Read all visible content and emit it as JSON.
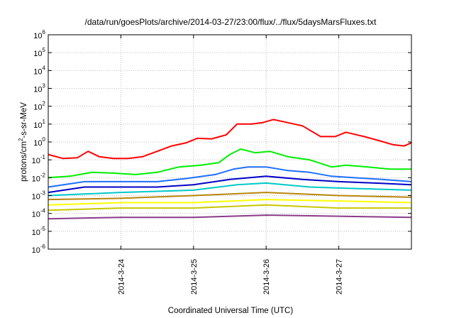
{
  "chart_data": {
    "type": "line",
    "title": "/data/run/goesPlots/archive/2014-03-27/23:00/flux/../flux/5daysMarsFluxes.txt",
    "xlabel": "Coordinated Universal Time (UTC)",
    "ylabel": {
      "prefix": "protons/cm",
      "sup": "2",
      "suffix": "-s-sr-MeV"
    },
    "x_tick_labels": [
      "2014-3-24",
      "2014-3-25",
      "2014-3-26",
      "2014-3-27"
    ],
    "x_range_days": [
      -1.0,
      4.0
    ],
    "y_scale": "log",
    "y_tick_labels": [
      {
        "base": "10",
        "exp": "-6"
      },
      {
        "base": "10",
        "exp": "-5"
      },
      {
        "base": "10",
        "exp": "-4"
      },
      {
        "base": "10",
        "exp": "-3"
      },
      {
        "base": "10",
        "exp": "-2"
      },
      {
        "base": "10",
        "exp": "-1"
      },
      {
        "base": "10",
        "exp": "0"
      },
      {
        "base": "10",
        "exp": "1"
      },
      {
        "base": "10",
        "exp": "2"
      },
      {
        "base": "10",
        "exp": "3"
      },
      {
        "base": "10",
        "exp": "4"
      },
      {
        "base": "10",
        "exp": "5"
      },
      {
        "base": "10",
        "exp": "6"
      }
    ],
    "ylim_exp": [
      -6,
      6
    ],
    "grid": true,
    "series": [
      {
        "color": "#ff0000",
        "values": [
          [
            -1.0,
            0.2
          ],
          [
            -0.8,
            0.12
          ],
          [
            -0.6,
            0.13
          ],
          [
            -0.45,
            0.3
          ],
          [
            -0.3,
            0.15
          ],
          [
            -0.1,
            0.12
          ],
          [
            0.1,
            0.12
          ],
          [
            0.3,
            0.15
          ],
          [
            0.5,
            0.3
          ],
          [
            0.7,
            0.6
          ],
          [
            0.9,
            0.9
          ],
          [
            1.05,
            1.6
          ],
          [
            1.25,
            1.5
          ],
          [
            1.45,
            2.5
          ],
          [
            1.6,
            10
          ],
          [
            1.8,
            10
          ],
          [
            1.95,
            12
          ],
          [
            2.1,
            18
          ],
          [
            2.3,
            12
          ],
          [
            2.5,
            8
          ],
          [
            2.75,
            2.0
          ],
          [
            2.95,
            2.0
          ],
          [
            3.1,
            3.5
          ],
          [
            3.35,
            2.0
          ],
          [
            3.55,
            1.2
          ],
          [
            3.75,
            0.7
          ],
          [
            3.9,
            0.6
          ],
          [
            4.0,
            0.9
          ]
        ]
      },
      {
        "color": "#00ee00",
        "values": [
          [
            -1.0,
            0.01
          ],
          [
            -0.7,
            0.012
          ],
          [
            -0.4,
            0.02
          ],
          [
            -0.1,
            0.018
          ],
          [
            0.2,
            0.015
          ],
          [
            0.5,
            0.02
          ],
          [
            0.8,
            0.04
          ],
          [
            1.1,
            0.05
          ],
          [
            1.35,
            0.07
          ],
          [
            1.5,
            0.2
          ],
          [
            1.65,
            0.4
          ],
          [
            1.85,
            0.25
          ],
          [
            2.05,
            0.3
          ],
          [
            2.3,
            0.15
          ],
          [
            2.6,
            0.1
          ],
          [
            2.9,
            0.04
          ],
          [
            3.1,
            0.05
          ],
          [
            3.4,
            0.04
          ],
          [
            3.7,
            0.03
          ],
          [
            4.0,
            0.03
          ]
        ]
      },
      {
        "color": "#1e6fff",
        "values": [
          [
            -1.0,
            0.003
          ],
          [
            -0.5,
            0.006
          ],
          [
            0.0,
            0.006
          ],
          [
            0.5,
            0.006
          ],
          [
            0.9,
            0.009
          ],
          [
            1.3,
            0.015
          ],
          [
            1.55,
            0.03
          ],
          [
            1.75,
            0.04
          ],
          [
            2.0,
            0.04
          ],
          [
            2.3,
            0.025
          ],
          [
            2.6,
            0.02
          ],
          [
            2.9,
            0.012
          ],
          [
            3.2,
            0.01
          ],
          [
            3.6,
            0.008
          ],
          [
            4.0,
            0.006
          ]
        ]
      },
      {
        "color": "#0000c8",
        "values": [
          [
            -1.0,
            0.0015
          ],
          [
            -0.5,
            0.003
          ],
          [
            0.0,
            0.003
          ],
          [
            0.5,
            0.003
          ],
          [
            1.0,
            0.004
          ],
          [
            1.5,
            0.008
          ],
          [
            2.0,
            0.012
          ],
          [
            2.5,
            0.008
          ],
          [
            3.0,
            0.006
          ],
          [
            3.5,
            0.005
          ],
          [
            4.0,
            0.004
          ]
        ]
      },
      {
        "color": "#00c8c8",
        "values": [
          [
            -1.0,
            0.001
          ],
          [
            0.0,
            0.0015
          ],
          [
            1.0,
            0.002
          ],
          [
            1.6,
            0.004
          ],
          [
            2.0,
            0.005
          ],
          [
            2.6,
            0.003
          ],
          [
            3.2,
            0.0025
          ],
          [
            4.0,
            0.002
          ]
        ]
      },
      {
        "color": "#b8860b",
        "values": [
          [
            -1.0,
            0.0006
          ],
          [
            0.0,
            0.0007
          ],
          [
            1.0,
            0.001
          ],
          [
            2.0,
            0.0015
          ],
          [
            3.0,
            0.001
          ],
          [
            4.0,
            0.0008
          ]
        ]
      },
      {
        "color": "#ffff00",
        "values": [
          [
            -1.0,
            0.0003
          ],
          [
            0.0,
            0.0004
          ],
          [
            1.0,
            0.0004
          ],
          [
            2.0,
            0.0006
          ],
          [
            3.0,
            0.0005
          ],
          [
            4.0,
            0.0004
          ]
        ]
      },
      {
        "color": "#c8c800",
        "values": [
          [
            -1.0,
            0.00015
          ],
          [
            0.0,
            0.0002
          ],
          [
            1.0,
            0.0002
          ],
          [
            2.0,
            0.0003
          ],
          [
            3.0,
            0.0002
          ],
          [
            4.0,
            0.0002
          ]
        ]
      },
      {
        "color": "#8b3a8b",
        "values": [
          [
            -1.0,
            5e-05
          ],
          [
            0.0,
            6e-05
          ],
          [
            1.0,
            6e-05
          ],
          [
            2.0,
            8e-05
          ],
          [
            3.0,
            7e-05
          ],
          [
            4.0,
            6e-05
          ]
        ]
      }
    ]
  }
}
